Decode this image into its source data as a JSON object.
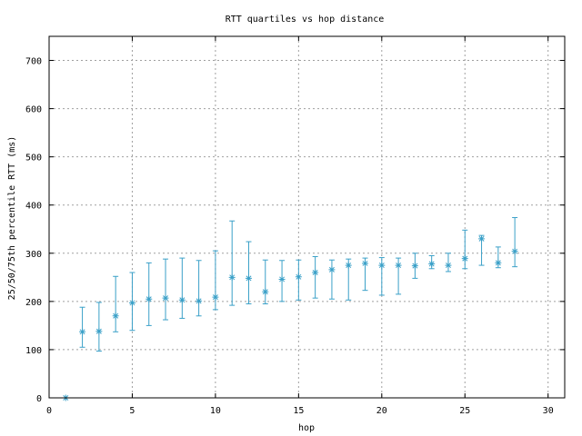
{
  "chart_data": {
    "type": "scatter",
    "title": "RTT quartiles vs hop distance",
    "xlabel": "hop",
    "ylabel": "25/50/75th percentile RTT (ms)",
    "xlim": [
      0,
      31
    ],
    "ylim": [
      0,
      750
    ],
    "xticks": [
      0,
      5,
      10,
      15,
      20,
      25,
      30
    ],
    "yticks": [
      0,
      100,
      200,
      300,
      400,
      500,
      600,
      700
    ],
    "grid": true,
    "series_color": "#3aa0c8",
    "x": [
      1,
      2,
      3,
      4,
      5,
      6,
      7,
      8,
      9,
      10,
      11,
      12,
      13,
      14,
      15,
      16,
      17,
      18,
      19,
      20,
      21,
      22,
      23,
      24,
      25,
      26,
      27,
      28
    ],
    "median": [
      0,
      137,
      138,
      170,
      197,
      205,
      207,
      203,
      201,
      209,
      250,
      248,
      220,
      246,
      251,
      260,
      266,
      275,
      279,
      275,
      275,
      274,
      278,
      275,
      289,
      330,
      280,
      304
    ],
    "q25": [
      0,
      105,
      97,
      137,
      140,
      150,
      162,
      165,
      170,
      183,
      192,
      195,
      195,
      200,
      203,
      207,
      205,
      203,
      223,
      213,
      215,
      248,
      268,
      262,
      268,
      275,
      270,
      272
    ],
    "q75": [
      0,
      188,
      198,
      252,
      260,
      280,
      288,
      290,
      285,
      305,
      367,
      324,
      286,
      285,
      286,
      293,
      286,
      288,
      290,
      291,
      290,
      300,
      295,
      300,
      348,
      337,
      313,
      374
    ]
  }
}
